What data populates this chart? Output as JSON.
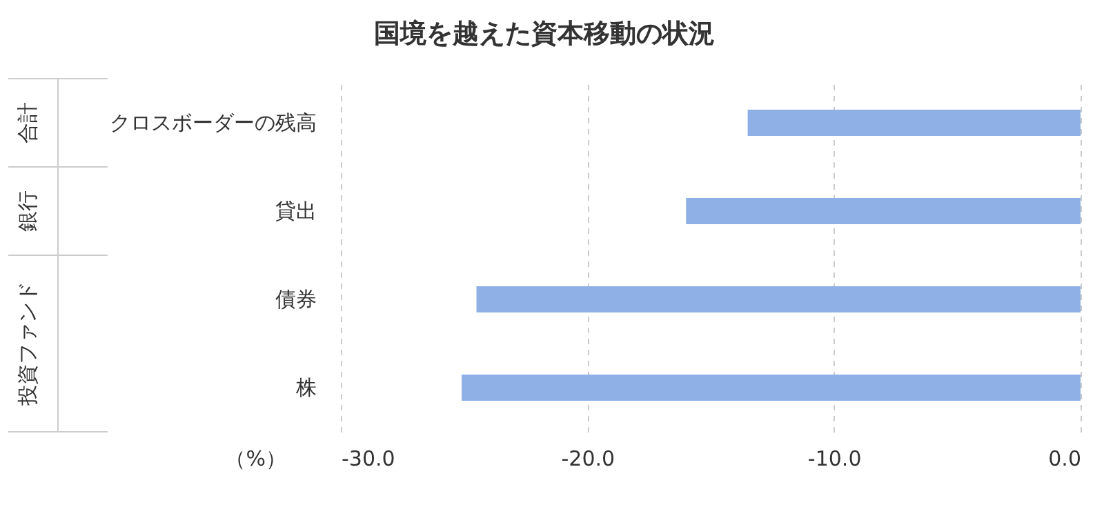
{
  "chart_data": {
    "type": "bar",
    "orientation": "horizontal",
    "title": "国境を越えた資本移動の状況",
    "xlabel": "（%）",
    "categories": [
      "クロスボーダーの残高",
      "貸出",
      "債券",
      "株"
    ],
    "values": [
      -13.5,
      -16.0,
      -24.5,
      -25.1
    ],
    "color": "#8eb0e6",
    "xlim": [
      -30,
      0
    ],
    "xticks": [
      {
        "value": -30,
        "label": "-30.0"
      },
      {
        "value": -20,
        "label": "-20.0"
      },
      {
        "value": -10,
        "label": "-10.0"
      },
      {
        "value": 0,
        "label": "0.0"
      }
    ],
    "grid": "x",
    "annotations": [
      "合計",
      "銀行",
      "投資ファンド"
    ]
  }
}
